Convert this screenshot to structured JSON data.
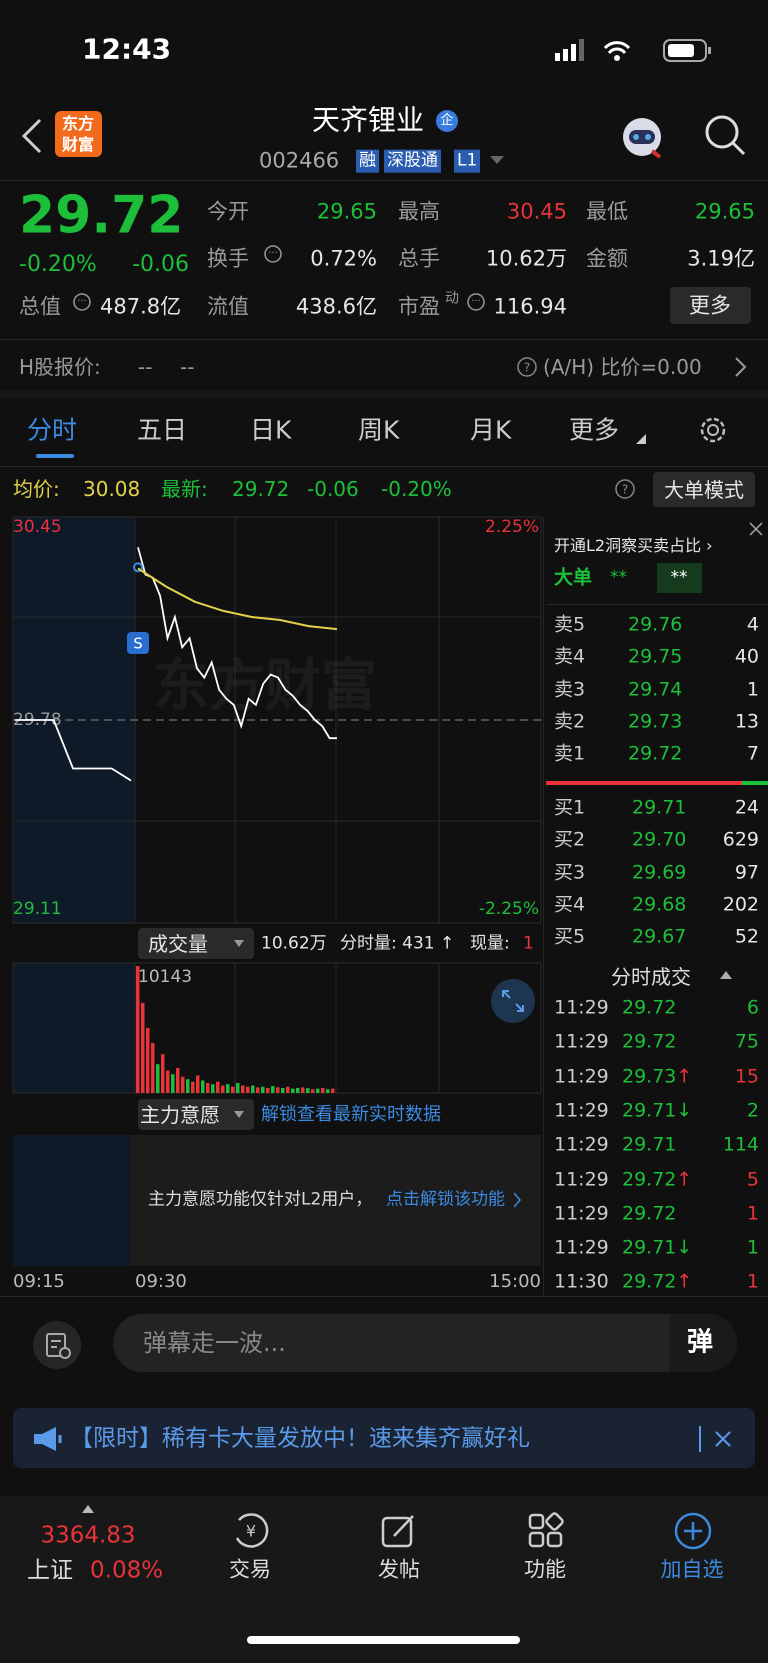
{
  "status_bar": {
    "time": "12:43"
  },
  "header": {
    "logo": [
      "东方",
      "财富"
    ],
    "title": "天齐锂业",
    "badge": "企",
    "code": "002466",
    "tags": [
      "融",
      "深股通",
      "L1"
    ]
  },
  "quote": {
    "price": "29.72",
    "change_pct": "-0.20%",
    "change": "-0.06",
    "stats": [
      {
        "label": "今开",
        "value": "29.65"
      },
      {
        "label": "最高",
        "value": "30.45"
      },
      {
        "label": "最低",
        "value": "29.65"
      },
      {
        "label": "换手",
        "value": "0.72%"
      },
      {
        "label": "总手",
        "value": "10.62万"
      },
      {
        "label": "金额",
        "value": "3.19亿"
      },
      {
        "label": "总值",
        "value": "487.8亿"
      },
      {
        "label": "流值",
        "value": "438.6亿"
      },
      {
        "label": "市盈",
        "superscript": "动",
        "value": "116.94"
      }
    ],
    "more_button": "更多"
  },
  "h_share": {
    "label": "H股报价:",
    "price": "--",
    "change": "--",
    "ratio": "(A/H) 比价=0.00"
  },
  "tabs": [
    "分时",
    "五日",
    "日K",
    "周K",
    "月K",
    "更多"
  ],
  "summary": {
    "avg_label": "均价:",
    "avg": "30.08",
    "last_label": "最新:",
    "last": "29.72",
    "change": "-0.06",
    "change_pct": "-0.20%",
    "mode_button": "大单模式"
  },
  "chart_data": [
    {
      "type": "line",
      "watermark": "东方财富",
      "ylim": [
        29.11,
        30.45
      ],
      "yticks": [
        29.11,
        29.78,
        30.45
      ],
      "y2lim": [
        -2.25,
        2.25
      ],
      "y2ticks": [
        {
          "value": -2.25,
          "label": "-2.25%"
        },
        {
          "value": 2.25,
          "label": "2.25%"
        }
      ],
      "x_labels": [
        "09:15",
        "09:30",
        "15:00"
      ],
      "series": [
        {
          "color": "#ffffff",
          "values": [
            29.78,
            29.78,
            29.78,
            29.62,
            29.62,
            29.62,
            29.58
          ]
        },
        {
          "color": "#ffffff",
          "values": [
            30.35,
            30.26,
            30.25,
            30.19,
            30.05,
            30.12,
            30.02,
            30.05,
            29.95,
            29.92,
            29.97,
            29.88,
            29.85,
            29.83,
            29.76,
            29.85,
            29.83,
            29.9,
            29.93,
            29.92,
            29.88,
            29.86,
            29.83,
            29.81,
            29.78,
            29.76,
            29.72,
            29.72
          ]
        },
        {
          "color": "#e3d24a",
          "values": [
            30.28,
            30.22,
            30.17,
            30.14,
            30.12,
            30.11,
            30.09,
            30.08
          ]
        }
      ]
    },
    {
      "type": "bar",
      "ylim": [
        0,
        10143
      ],
      "yticks": [
        10143
      ],
      "series": [
        {
          "color": "#e8333a",
          "values": [
            10143,
            7200,
            5200,
            4000,
            null,
            3100,
            1800,
            null,
            2000,
            1300,
            null,
            900,
            1400,
            null,
            800,
            null,
            900,
            600,
            null,
            500,
            null,
            600,
            500,
            null,
            450,
            null,
            400,
            null,
            450,
            null,
            500,
            null,
            null,
            450,
            null,
            300,
            null,
            400,
            null,
            350
          ]
        },
        {
          "color": "#1dbf3a",
          "values": [
            null,
            null,
            null,
            null,
            2300,
            null,
            null,
            1500,
            null,
            null,
            1100,
            null,
            null,
            1000,
            null,
            700,
            null,
            null,
            700,
            null,
            800,
            null,
            null,
            600,
            null,
            500,
            null,
            550,
            null,
            400,
            null,
            350,
            400,
            null,
            380,
            null,
            350,
            null,
            300,
            null
          ]
        }
      ]
    }
  ],
  "volume_bar": {
    "selector": "成交量",
    "total": "10.62万",
    "minute_volume": "分时量: 431 ↑",
    "current_label": "现量:",
    "current": "1"
  },
  "main_force": {
    "selector": "主力意愿",
    "unlock_link": "解锁查看最新实时数据",
    "notice": "主力意愿功能仅针对L2用户，",
    "notice_link": "点击解锁该功能"
  },
  "order_book": {
    "promo": "开通L2洞察买卖占比 ›",
    "big_order_label": "大单",
    "big_order_buy": "**",
    "big_order_sell": "**",
    "asks": [
      {
        "label": "卖5",
        "price": "29.76",
        "volume": "4"
      },
      {
        "label": "卖4",
        "price": "29.75",
        "volume": "40"
      },
      {
        "label": "卖3",
        "price": "29.74",
        "volume": "1"
      },
      {
        "label": "卖2",
        "price": "29.73",
        "volume": "13"
      },
      {
        "label": "卖1",
        "price": "29.72",
        "volume": "7"
      }
    ],
    "bids": [
      {
        "label": "买1",
        "price": "29.71",
        "volume": "24"
      },
      {
        "label": "买2",
        "price": "29.70",
        "volume": "629"
      },
      {
        "label": "买3",
        "price": "29.69",
        "volume": "97"
      },
      {
        "label": "买4",
        "price": "29.68",
        "volume": "202"
      },
      {
        "label": "买5",
        "price": "29.67",
        "volume": "52"
      }
    ]
  },
  "trades": {
    "title": "分时成交",
    "rows": [
      {
        "time": "11:29",
        "price": "29.72",
        "volume": "6",
        "color": "#1dbf3a"
      },
      {
        "time": "11:29",
        "price": "29.72",
        "volume": "75",
        "color": "#1dbf3a"
      },
      {
        "time": "11:29",
        "price": "29.73",
        "arrow": "↑",
        "volume": "15",
        "color": "#e8333a"
      },
      {
        "time": "11:29",
        "price": "29.71",
        "arrow": "↓",
        "volume": "2",
        "color": "#1dbf3a"
      },
      {
        "time": "11:29",
        "price": "29.71",
        "volume": "114",
        "color": "#1dbf3a"
      },
      {
        "time": "11:29",
        "price": "29.72",
        "arrow": "↑",
        "volume": "5",
        "color": "#e8333a"
      },
      {
        "time": "11:29",
        "price": "29.72",
        "volume": "1",
        "color": "#e8333a"
      },
      {
        "time": "11:29",
        "price": "29.71",
        "arrow": "↓",
        "volume": "1",
        "color": "#1dbf3a"
      },
      {
        "time": "11:30",
        "price": "29.72",
        "arrow": "↑",
        "volume": "1",
        "color": "#e8333a"
      }
    ]
  },
  "comment_bar": {
    "placeholder": "弹幕走一波...",
    "button": "弹"
  },
  "banner": {
    "text": "【限时】稀有卡大量发放中！速来集齐赢好礼"
  },
  "bottom_nav": {
    "index_value": "3364.83",
    "index_name": "上证",
    "index_change": "0.08%",
    "items": [
      "交易",
      "发帖",
      "功能",
      "加自选"
    ]
  }
}
